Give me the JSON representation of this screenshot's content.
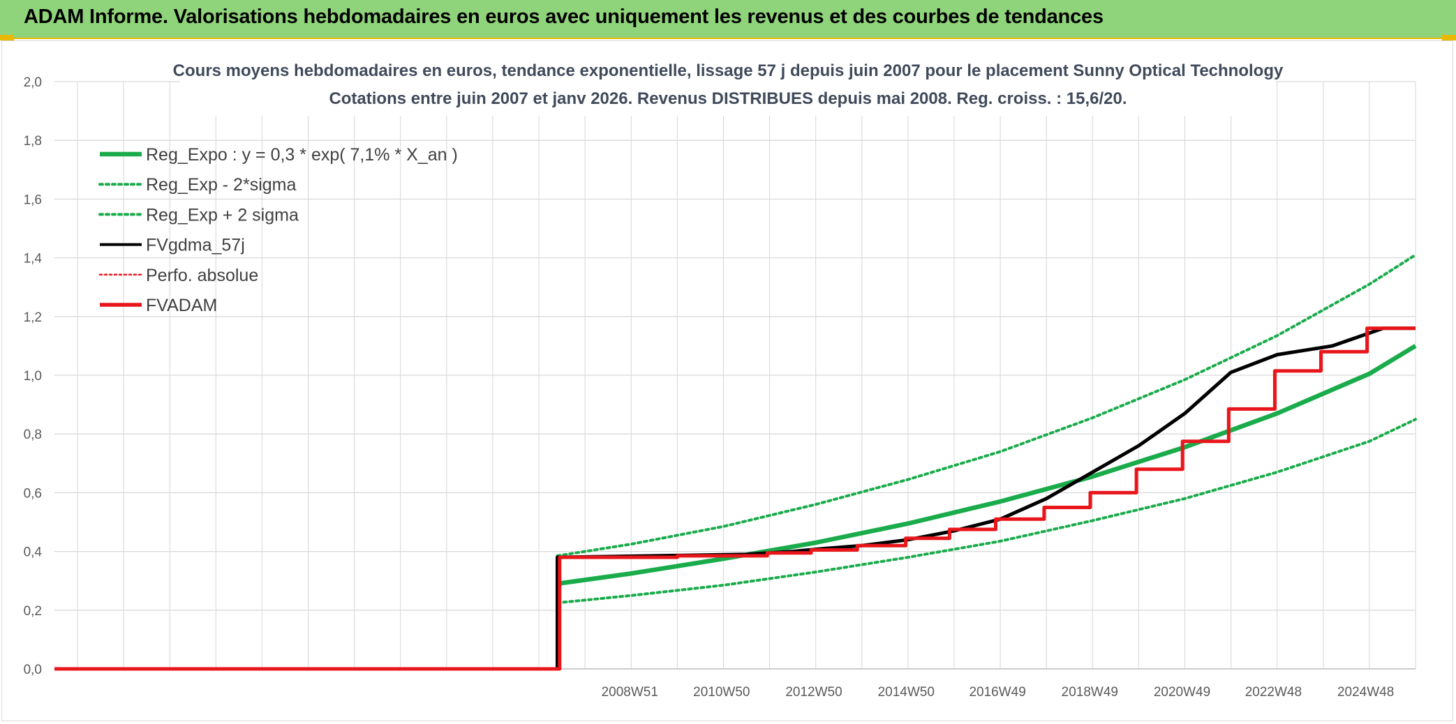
{
  "banner": {
    "title": "ADAM Informe. Valorisations hebdomadaires en euros avec uniquement les revenus et des courbes de tendances"
  },
  "colors": {
    "banner_bg": "#8fd47a",
    "banner_accent": "#e9b800",
    "green": "#1aab4b",
    "red": "#e8161b",
    "black": "#000000",
    "grid": "#d9d9d9"
  },
  "chart_data": {
    "type": "line",
    "title": "Cours moyens hebdomadaires en euros, tendance exponentielle, lissage 57 j depuis juin 2007 pour le placement Sunny Optical Technology",
    "subtitle": "Cotations entre juin 2007 et janv 2026. Revenus DISTRIBUES depuis mai 2008. Reg. croiss. : 15,6/20.",
    "xlabel": "",
    "ylabel": "",
    "x_tick_labels": [
      "2008W51",
      "2010W50",
      "2012W50",
      "2014W50",
      "2016W49",
      "2018W49",
      "2020W49",
      "2022W48",
      "2024W48"
    ],
    "x_tick_years": [
      2008.97,
      2010.96,
      2012.96,
      2014.96,
      2016.94,
      2018.94,
      2020.94,
      2022.92,
      2024.92
    ],
    "xlim": [
      1996.5,
      2026.0
    ],
    "ylim": [
      0,
      2.0
    ],
    "y_ticks": [
      "0,0",
      "0,2",
      "0,4",
      "0,6",
      "0,8",
      "1,0",
      "1,2",
      "1,4",
      "1,6",
      "1,8",
      "2,0"
    ],
    "y_tick_values": [
      0,
      0.2,
      0.4,
      0.6,
      0.8,
      1.0,
      1.2,
      1.4,
      1.6,
      1.8,
      2.0
    ],
    "grid": true,
    "legend_position": "top-left",
    "legend": [
      {
        "label": "Reg_Expo : y = 0,3 * exp( 7,1% *  X_an )",
        "style": "green-thick"
      },
      {
        "label": "Reg_Exp - 2*sigma",
        "style": "green-dotted"
      },
      {
        "label": "Reg_Exp + 2 sigma",
        "style": "green-dotted"
      },
      {
        "label": "FVgdma_57j",
        "style": "black"
      },
      {
        "label": "Perfo. absolue",
        "style": "red-dotted"
      },
      {
        "label": "FVADAM",
        "style": "red-thick"
      }
    ],
    "series": [
      {
        "name": "Reg_Expo : y = 0,3 * exp( 7,1% *  X_an )",
        "color": "#1aab4b",
        "x": [
          2007.4,
          2009,
          2011,
          2013,
          2015,
          2017,
          2019,
          2021,
          2023,
          2025,
          2026.0
        ],
        "values": [
          0.29,
          0.325,
          0.375,
          0.43,
          0.495,
          0.57,
          0.655,
          0.755,
          0.87,
          1.005,
          1.1
        ]
      },
      {
        "name": "Reg_Exp - 2*sigma",
        "color": "#1aab4b",
        "x": [
          2007.4,
          2009,
          2011,
          2013,
          2015,
          2017,
          2019,
          2021,
          2023,
          2025,
          2026.0
        ],
        "values": [
          0.225,
          0.25,
          0.285,
          0.33,
          0.38,
          0.435,
          0.505,
          0.58,
          0.67,
          0.775,
          0.85
        ]
      },
      {
        "name": "Reg_Exp + 2 sigma",
        "color": "#1aab4b",
        "x": [
          2007.4,
          2009,
          2011,
          2013,
          2015,
          2017,
          2019,
          2021,
          2023,
          2025,
          2026.0
        ],
        "values": [
          0.385,
          0.425,
          0.485,
          0.56,
          0.645,
          0.74,
          0.855,
          0.985,
          1.135,
          1.31,
          1.41
        ]
      },
      {
        "name": "FVgdma_57j",
        "color": "#000000",
        "x": [
          1996.5,
          2007.4,
          2007.4,
          2011.5,
          2012.0,
          2012.5,
          2013.2,
          2014.0,
          2015.0,
          2016.0,
          2017.0,
          2018.0,
          2019.0,
          2020.0,
          2021.0,
          2022.0,
          2023.0,
          2024.2,
          2025.3,
          2026.0
        ],
        "values": [
          0,
          0,
          0.38,
          0.39,
          0.395,
          0.4,
          0.41,
          0.42,
          0.44,
          0.47,
          0.51,
          0.58,
          0.67,
          0.76,
          0.87,
          1.01,
          1.07,
          1.1,
          1.16,
          1.16
        ]
      },
      {
        "name": "FVADAM",
        "color": "#e8161b",
        "x": [
          1996.5,
          2007.45,
          2007.45,
          2010.0,
          2010.0,
          2011.95,
          2011.95,
          2012.9,
          2012.9,
          2013.9,
          2013.9,
          2014.95,
          2014.95,
          2015.9,
          2015.9,
          2016.9,
          2016.9,
          2017.95,
          2017.95,
          2018.95,
          2018.95,
          2019.95,
          2019.95,
          2020.95,
          2020.95,
          2021.95,
          2021.95,
          2022.95,
          2022.95,
          2023.95,
          2023.95,
          2024.95,
          2024.95,
          2026.0
        ],
        "values": [
          0,
          0,
          0.38,
          0.38,
          0.385,
          0.385,
          0.395,
          0.395,
          0.405,
          0.405,
          0.42,
          0.42,
          0.445,
          0.445,
          0.475,
          0.475,
          0.51,
          0.51,
          0.55,
          0.55,
          0.6,
          0.6,
          0.68,
          0.68,
          0.775,
          0.775,
          0.885,
          0.885,
          1.015,
          1.015,
          1.08,
          1.08,
          1.16,
          1.16
        ]
      }
    ]
  }
}
